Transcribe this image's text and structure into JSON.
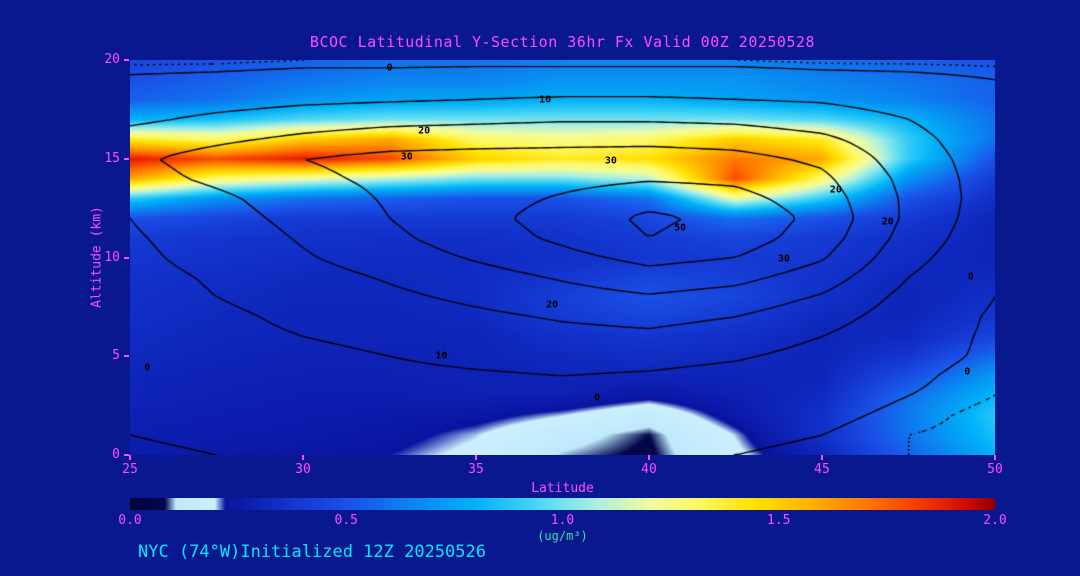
{
  "title": "BCOC Latitudinal Y-Section 36hr  Fx Valid 00Z 20250528",
  "footer": "NYC (74°W)Initialized 12Z 20250526",
  "colors": {
    "background": "#0a188f",
    "title_text": "#ff4cff",
    "axis_text": "#ff4cff",
    "footer_text": "#00e8ff",
    "units_text": "#2fe8a4",
    "contour_line": "#000000"
  },
  "axes": {
    "x": {
      "label": "Latitude",
      "min": 25,
      "max": 50,
      "ticks": [
        25,
        30,
        35,
        40,
        45,
        50
      ]
    },
    "y": {
      "label": "Altitude (km)",
      "min": 0,
      "max": 20,
      "ticks": [
        0,
        5,
        10,
        15,
        20
      ]
    }
  },
  "colorbar": {
    "min": 0.0,
    "max": 2.0,
    "ticks": [
      "0.0",
      "0.5",
      "1.0",
      "1.5",
      "2.0"
    ],
    "units": "(ug/m³)"
  },
  "chart_data": {
    "type": "heatmap",
    "title": "BCOC Latitudinal Y-Section 36hr  Fx Valid 00Z 20250528",
    "xlabel": "Latitude",
    "ylabel": "Altitude (km)",
    "fill_units": "ug/m3",
    "fill_range": [
      0,
      2
    ],
    "x_latitudes": [
      25,
      27.5,
      30,
      32.5,
      35,
      37.5,
      40,
      42.5,
      45,
      47.5,
      50
    ],
    "y_altitudes_km": [
      0,
      1,
      2,
      3,
      4,
      5,
      6,
      7,
      8,
      9,
      10,
      11,
      12,
      13,
      14,
      15,
      16,
      17,
      18,
      19,
      20
    ],
    "fill_values": [
      [
        0.26,
        0.25,
        0.24,
        0.22,
        0.18,
        0.1,
        0.07,
        0.18,
        0.3,
        0.55,
        0.8
      ],
      [
        0.27,
        0.26,
        0.25,
        0.24,
        0.2,
        0.13,
        0.08,
        0.2,
        0.35,
        0.6,
        0.85
      ],
      [
        0.28,
        0.27,
        0.26,
        0.25,
        0.24,
        0.2,
        0.14,
        0.25,
        0.35,
        0.62,
        0.88
      ],
      [
        0.3,
        0.28,
        0.27,
        0.27,
        0.28,
        0.28,
        0.24,
        0.28,
        0.32,
        0.58,
        0.82
      ],
      [
        0.3,
        0.29,
        0.28,
        0.28,
        0.29,
        0.3,
        0.3,
        0.3,
        0.3,
        0.48,
        0.72
      ],
      [
        0.32,
        0.3,
        0.29,
        0.29,
        0.3,
        0.32,
        0.34,
        0.32,
        0.3,
        0.38,
        0.58
      ],
      [
        0.33,
        0.31,
        0.3,
        0.3,
        0.3,
        0.35,
        0.38,
        0.35,
        0.3,
        0.32,
        0.45
      ],
      [
        0.34,
        0.32,
        0.3,
        0.3,
        0.32,
        0.4,
        0.45,
        0.4,
        0.32,
        0.3,
        0.38
      ],
      [
        0.35,
        0.33,
        0.31,
        0.31,
        0.33,
        0.42,
        0.5,
        0.45,
        0.35,
        0.3,
        0.34
      ],
      [
        0.36,
        0.34,
        0.32,
        0.32,
        0.33,
        0.38,
        0.45,
        0.42,
        0.36,
        0.31,
        0.32
      ],
      [
        0.38,
        0.36,
        0.34,
        0.33,
        0.33,
        0.35,
        0.38,
        0.4,
        0.38,
        0.33,
        0.3
      ],
      [
        0.4,
        0.38,
        0.36,
        0.35,
        0.35,
        0.36,
        0.4,
        0.45,
        0.4,
        0.35,
        0.3
      ],
      [
        0.5,
        0.45,
        0.4,
        0.4,
        0.4,
        0.4,
        0.45,
        0.6,
        0.5,
        0.4,
        0.3
      ],
      [
        0.9,
        0.7,
        0.6,
        0.55,
        0.5,
        0.5,
        0.6,
        1.2,
        0.9,
        0.5,
        0.35
      ],
      [
        1.6,
        1.3,
        1.2,
        1.1,
        1.0,
        1.0,
        1.1,
        1.8,
        1.3,
        0.7,
        0.4
      ],
      [
        1.9,
        1.8,
        1.9,
        1.8,
        1.5,
        1.4,
        1.45,
        1.7,
        1.6,
        0.9,
        0.5
      ],
      [
        1.4,
        1.3,
        1.5,
        1.6,
        1.3,
        1.25,
        1.3,
        1.5,
        1.4,
        0.9,
        0.6
      ],
      [
        0.8,
        0.85,
        0.95,
        1.0,
        1.0,
        1.0,
        1.0,
        1.0,
        0.95,
        0.8,
        0.6
      ],
      [
        0.55,
        0.6,
        0.7,
        0.75,
        0.75,
        0.8,
        0.8,
        0.75,
        0.7,
        0.65,
        0.55
      ],
      [
        0.5,
        0.55,
        0.6,
        0.65,
        0.65,
        0.7,
        0.7,
        0.7,
        0.65,
        0.6,
        0.55
      ],
      [
        0.45,
        0.5,
        0.55,
        0.6,
        0.6,
        0.65,
        0.65,
        0.65,
        0.6,
        0.55,
        0.5
      ]
    ],
    "contour_levels": [
      -2,
      0,
      10,
      20,
      30,
      40,
      50
    ],
    "contour_grid": [
      [
        -1,
        0,
        1,
        1,
        1,
        1,
        0,
        0,
        -1,
        -2,
        -3
      ],
      [
        0,
        1,
        2,
        2,
        2,
        2,
        1,
        1,
        0,
        -2,
        -3
      ],
      [
        0,
        2,
        3,
        3,
        4,
        4,
        3,
        2,
        1,
        -1,
        -3
      ],
      [
        1,
        3,
        4,
        5,
        6,
        6,
        6,
        4,
        2,
        0,
        -2
      ],
      [
        2,
        4,
        6,
        8,
        9,
        10,
        9,
        7,
        4,
        1,
        -2
      ],
      [
        3,
        5,
        8,
        10,
        12,
        13,
        13,
        11,
        7,
        2,
        -1
      ],
      [
        4,
        7,
        10,
        12,
        15,
        17,
        18,
        15,
        10,
        3,
        -1
      ],
      [
        5,
        8,
        12,
        15,
        18,
        21,
        23,
        20,
        14,
        5,
        -1
      ],
      [
        6,
        10,
        14,
        18,
        22,
        26,
        29,
        26,
        19,
        7,
        0
      ],
      [
        7,
        11,
        16,
        21,
        26,
        31,
        36,
        33,
        25,
        10,
        1
      ],
      [
        8,
        13,
        19,
        25,
        31,
        37,
        43,
        40,
        31,
        13,
        2
      ],
      [
        9,
        14,
        21,
        28,
        35,
        42,
        50,
        45,
        35,
        16,
        3
      ],
      [
        10,
        16,
        23,
        30,
        37,
        44,
        52,
        47,
        37,
        18,
        4
      ],
      [
        12,
        18,
        25,
        31,
        36,
        41,
        46,
        43,
        35,
        18,
        5
      ],
      [
        16,
        22,
        28,
        32,
        35,
        37,
        39,
        38,
        32,
        17,
        5
      ],
      [
        18,
        24,
        30,
        33,
        34,
        34,
        35,
        33,
        28,
        15,
        5
      ],
      [
        14,
        18,
        22,
        25,
        26,
        27,
        27,
        26,
        22,
        13,
        4
      ],
      [
        8,
        12,
        15,
        17,
        18,
        19,
        19,
        18,
        15,
        10,
        3
      ],
      [
        4,
        6,
        8,
        9,
        10,
        11,
        11,
        10,
        9,
        6,
        2
      ],
      [
        1,
        2,
        3,
        3,
        4,
        4,
        4,
        4,
        3,
        2,
        0
      ],
      [
        -3,
        -3,
        -2,
        -2,
        -2,
        -2,
        -2,
        -2,
        -3,
        -3,
        -3
      ]
    ],
    "contour_labels": [
      {
        "lat": 32.5,
        "alt": 19.6,
        "text": "0"
      },
      {
        "lat": 37.0,
        "alt": 18.0,
        "text": "10"
      },
      {
        "lat": 33.5,
        "alt": 16.4,
        "text": "20"
      },
      {
        "lat": 33.0,
        "alt": 15.1,
        "text": "30"
      },
      {
        "lat": 38.9,
        "alt": 14.9,
        "text": "30"
      },
      {
        "lat": 45.4,
        "alt": 13.4,
        "text": "20"
      },
      {
        "lat": 40.9,
        "alt": 11.5,
        "text": "50"
      },
      {
        "lat": 43.9,
        "alt": 9.9,
        "text": "30"
      },
      {
        "lat": 37.2,
        "alt": 7.6,
        "text": "20"
      },
      {
        "lat": 34.0,
        "alt": 5.0,
        "text": "10"
      },
      {
        "lat": 25.5,
        "alt": 4.4,
        "text": "0"
      },
      {
        "lat": 38.5,
        "alt": 2.9,
        "text": "0"
      },
      {
        "lat": 49.2,
        "alt": 4.2,
        "text": "0"
      },
      {
        "lat": 49.3,
        "alt": 9.0,
        "text": "0"
      },
      {
        "lat": 46.9,
        "alt": 11.8,
        "text": "20"
      }
    ],
    "colormap_stops": [
      [
        0.0,
        "#02023a"
      ],
      [
        0.08,
        "#04064e"
      ],
      [
        0.105,
        "#bfeafc"
      ],
      [
        0.195,
        "#cdeffd"
      ],
      [
        0.22,
        "#0a13a0"
      ],
      [
        0.35,
        "#1130c8"
      ],
      [
        0.5,
        "#1b50e8"
      ],
      [
        0.65,
        "#0b84f0"
      ],
      [
        0.8,
        "#00b2f8"
      ],
      [
        0.95,
        "#50d8f4"
      ],
      [
        1.08,
        "#aef0e0"
      ],
      [
        1.2,
        "#f0fca0"
      ],
      [
        1.32,
        "#fff860"
      ],
      [
        1.45,
        "#ffe000"
      ],
      [
        1.58,
        "#ffb000"
      ],
      [
        1.72,
        "#ff7000"
      ],
      [
        1.85,
        "#f03000"
      ],
      [
        1.94,
        "#cc0a00"
      ],
      [
        2.0,
        "#8f0000"
      ]
    ]
  }
}
